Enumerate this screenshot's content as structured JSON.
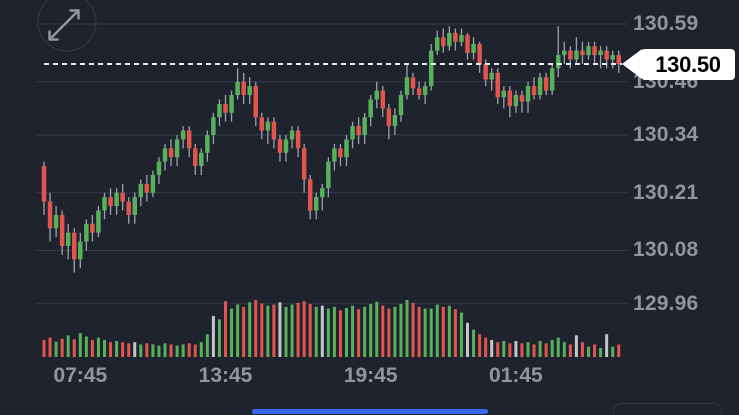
{
  "controls": {
    "expand_button_icon": "expand-arrows-icon",
    "partial_bottom_button_label": ""
  },
  "chart_data": {
    "type": "candlestick",
    "title": "",
    "interval_hint": "15m",
    "last_price": 130.5,
    "last_price_label": "130.50",
    "price_line_value": 130.5,
    "y_axis": {
      "side": "right",
      "max_visible": 130.59,
      "ticks": [
        {
          "label": "130.59",
          "value": 130.59
        },
        {
          "label": "130.46",
          "value": 130.46
        },
        {
          "label": "130.34",
          "value": 130.34
        },
        {
          "label": "130.21",
          "value": 130.21
        },
        {
          "label": "130.08",
          "value": 130.08
        },
        {
          "label": "129.96",
          "value": 129.96
        }
      ]
    },
    "x_axis": {
      "labels": [
        {
          "label": "07:45",
          "candle_index": 6
        },
        {
          "label": "13:45",
          "candle_index": 30
        },
        {
          "label": "19:45",
          "candle_index": 54
        },
        {
          "label": "01:45",
          "candle_index": 78
        }
      ]
    },
    "colors": {
      "up": "#56b15a",
      "down": "#e2554f",
      "neutral": "#c2c5cc",
      "wick": "#aab0ba",
      "grid": "#343b49",
      "axis_text": "#8f95a1",
      "dashed_line": "#e8eaef",
      "badge_bg": "#ffffff",
      "badge_text": "#000000",
      "background": "#1f232e",
      "accent_blue": "#3a68ef"
    },
    "candles": [
      [
        130.27,
        130.28,
        130.16,
        130.19
      ],
      [
        130.19,
        130.21,
        130.1,
        130.13
      ],
      [
        130.13,
        130.18,
        130.11,
        130.16
      ],
      [
        130.16,
        130.17,
        130.07,
        130.09
      ],
      [
        130.09,
        130.14,
        130.06,
        130.12
      ],
      [
        130.12,
        130.13,
        130.03,
        130.06
      ],
      [
        130.06,
        130.12,
        130.04,
        130.1
      ],
      [
        130.1,
        130.15,
        130.08,
        130.14
      ],
      [
        130.14,
        130.16,
        130.1,
        130.12
      ],
      [
        130.12,
        130.18,
        130.11,
        130.17
      ],
      [
        130.17,
        130.21,
        130.15,
        130.2
      ],
      [
        130.2,
        130.22,
        130.16,
        130.18
      ],
      [
        130.18,
        130.22,
        130.16,
        130.21
      ],
      [
        130.21,
        130.23,
        130.17,
        130.19
      ],
      [
        130.19,
        130.2,
        130.14,
        130.16
      ],
      [
        130.16,
        130.21,
        130.14,
        130.2
      ],
      [
        130.2,
        130.24,
        130.18,
        130.23
      ],
      [
        130.23,
        130.25,
        130.19,
        130.21
      ],
      [
        130.21,
        130.26,
        130.2,
        130.25
      ],
      [
        130.25,
        130.29,
        130.23,
        130.28
      ],
      [
        130.28,
        130.32,
        130.26,
        130.31
      ],
      [
        130.31,
        130.33,
        130.27,
        130.29
      ],
      [
        130.29,
        130.34,
        130.27,
        130.33
      ],
      [
        130.33,
        130.36,
        130.31,
        130.35
      ],
      [
        130.35,
        130.36,
        130.29,
        130.31
      ],
      [
        130.31,
        130.32,
        130.25,
        130.27
      ],
      [
        130.27,
        130.31,
        130.25,
        130.3
      ],
      [
        130.3,
        130.35,
        130.28,
        130.34
      ],
      [
        130.34,
        130.39,
        130.32,
        130.38
      ],
      [
        130.38,
        130.42,
        130.36,
        130.41
      ],
      [
        130.41,
        130.43,
        130.37,
        130.39
      ],
      [
        130.39,
        130.44,
        130.37,
        130.43
      ],
      [
        130.43,
        130.49,
        130.42,
        130.46
      ],
      [
        130.46,
        130.48,
        130.41,
        130.43
      ],
      [
        130.43,
        130.47,
        130.41,
        130.45
      ],
      [
        130.45,
        130.46,
        130.36,
        130.38
      ],
      [
        130.38,
        130.39,
        130.33,
        130.35
      ],
      [
        130.35,
        130.38,
        130.32,
        130.37
      ],
      [
        130.37,
        130.38,
        130.31,
        130.33
      ],
      [
        130.33,
        130.34,
        130.28,
        130.3
      ],
      [
        130.3,
        130.34,
        130.28,
        130.33
      ],
      [
        130.33,
        130.36,
        130.31,
        130.35
      ],
      [
        130.35,
        130.36,
        130.29,
        130.31
      ],
      [
        130.31,
        130.32,
        130.21,
        130.24
      ],
      [
        130.24,
        130.25,
        130.15,
        130.17
      ],
      [
        130.17,
        130.21,
        130.15,
        130.2
      ],
      [
        130.2,
        130.23,
        130.17,
        130.22
      ],
      [
        130.22,
        130.29,
        130.2,
        130.28
      ],
      [
        130.28,
        130.32,
        130.26,
        130.31
      ],
      [
        130.31,
        130.32,
        130.27,
        130.29
      ],
      [
        130.29,
        130.34,
        130.27,
        130.33
      ],
      [
        130.33,
        130.37,
        130.31,
        130.36
      ],
      [
        130.36,
        130.38,
        130.32,
        130.34
      ],
      [
        130.34,
        130.39,
        130.32,
        130.38
      ],
      [
        130.38,
        130.43,
        130.36,
        130.42
      ],
      [
        130.42,
        130.46,
        130.4,
        130.44
      ],
      [
        130.44,
        130.45,
        130.38,
        130.4
      ],
      [
        130.4,
        130.41,
        130.33,
        130.36
      ],
      [
        130.36,
        130.4,
        130.34,
        130.385
      ],
      [
        130.385,
        130.44,
        130.37,
        130.43
      ],
      [
        130.43,
        130.5,
        130.42,
        130.47
      ],
      [
        130.47,
        130.48,
        130.43,
        130.445
      ],
      [
        130.445,
        130.46,
        130.42,
        130.43
      ],
      [
        130.43,
        130.46,
        130.41,
        130.45
      ],
      [
        130.45,
        130.545,
        130.44,
        130.53
      ],
      [
        130.53,
        130.575,
        130.52,
        130.56
      ],
      [
        130.56,
        130.58,
        130.525,
        130.54
      ],
      [
        130.54,
        130.585,
        130.53,
        130.57
      ],
      [
        130.57,
        130.58,
        130.53,
        130.55
      ],
      [
        130.55,
        130.58,
        130.54,
        130.565
      ],
      [
        130.565,
        130.57,
        130.51,
        130.525
      ],
      [
        130.525,
        130.56,
        130.51,
        130.545
      ],
      [
        130.545,
        130.55,
        130.48,
        130.5
      ],
      [
        130.5,
        130.51,
        130.45,
        130.465
      ],
      [
        130.465,
        130.49,
        130.44,
        130.48
      ],
      [
        130.48,
        130.49,
        130.41,
        130.425
      ],
      [
        130.425,
        130.45,
        130.4,
        130.44
      ],
      [
        130.44,
        130.45,
        130.38,
        130.405
      ],
      [
        130.405,
        130.44,
        130.39,
        130.43
      ],
      [
        130.43,
        130.44,
        130.39,
        130.415
      ],
      [
        130.415,
        130.46,
        130.39,
        130.45
      ],
      [
        130.45,
        130.47,
        130.42,
        130.43
      ],
      [
        130.43,
        130.48,
        130.42,
        130.47
      ],
      [
        130.47,
        130.48,
        130.43,
        130.44
      ],
      [
        130.44,
        130.5,
        130.43,
        130.49
      ],
      [
        130.49,
        130.585,
        130.47,
        130.52
      ],
      [
        130.52,
        130.55,
        130.5,
        130.53
      ],
      [
        130.53,
        130.54,
        130.49,
        130.51
      ],
      [
        130.51,
        130.56,
        130.5,
        130.53
      ],
      [
        130.53,
        130.55,
        130.5,
        130.52
      ],
      [
        130.52,
        130.55,
        130.51,
        130.54
      ],
      [
        130.54,
        130.55,
        130.5,
        130.52
      ],
      [
        130.52,
        130.54,
        130.49,
        130.53
      ],
      [
        130.53,
        130.54,
        130.49,
        130.51
      ],
      [
        130.51,
        130.53,
        130.49,
        130.52
      ],
      [
        130.52,
        130.53,
        130.48,
        130.5
      ]
    ],
    "volume": [
      [
        0.3,
        "r"
      ],
      [
        0.34,
        "r"
      ],
      [
        0.27,
        "g"
      ],
      [
        0.32,
        "r"
      ],
      [
        0.38,
        "g"
      ],
      [
        0.31,
        "r"
      ],
      [
        0.42,
        "g"
      ],
      [
        0.36,
        "g"
      ],
      [
        0.3,
        "r"
      ],
      [
        0.34,
        "g"
      ],
      [
        0.3,
        "g"
      ],
      [
        0.26,
        "r"
      ],
      [
        0.28,
        "g"
      ],
      [
        0.26,
        "r"
      ],
      [
        0.24,
        "r"
      ],
      [
        0.26,
        "n"
      ],
      [
        0.22,
        "g"
      ],
      [
        0.24,
        "r"
      ],
      [
        0.22,
        "g"
      ],
      [
        0.2,
        "g"
      ],
      [
        0.24,
        "g"
      ],
      [
        0.22,
        "r"
      ],
      [
        0.2,
        "g"
      ],
      [
        0.22,
        "g"
      ],
      [
        0.24,
        "r"
      ],
      [
        0.22,
        "r"
      ],
      [
        0.26,
        "g"
      ],
      [
        0.4,
        "g"
      ],
      [
        0.72,
        "n"
      ],
      [
        0.66,
        "g"
      ],
      [
        0.98,
        "r"
      ],
      [
        0.85,
        "g"
      ],
      [
        0.92,
        "g"
      ],
      [
        0.88,
        "r"
      ],
      [
        0.96,
        "g"
      ],
      [
        1.0,
        "r"
      ],
      [
        0.94,
        "r"
      ],
      [
        0.9,
        "g"
      ],
      [
        0.92,
        "r"
      ],
      [
        0.96,
        "n"
      ],
      [
        0.88,
        "g"
      ],
      [
        0.92,
        "g"
      ],
      [
        0.95,
        "r"
      ],
      [
        0.98,
        "r"
      ],
      [
        0.93,
        "r"
      ],
      [
        0.88,
        "g"
      ],
      [
        0.9,
        "n"
      ],
      [
        0.85,
        "g"
      ],
      [
        0.88,
        "g"
      ],
      [
        0.82,
        "r"
      ],
      [
        0.86,
        "g"
      ],
      [
        0.9,
        "g"
      ],
      [
        0.84,
        "r"
      ],
      [
        0.88,
        "g"
      ],
      [
        0.93,
        "g"
      ],
      [
        0.97,
        "g"
      ],
      [
        0.9,
        "r"
      ],
      [
        0.85,
        "r"
      ],
      [
        0.88,
        "g"
      ],
      [
        0.93,
        "g"
      ],
      [
        1.0,
        "g"
      ],
      [
        0.95,
        "r"
      ],
      [
        0.88,
        "r"
      ],
      [
        0.85,
        "g"
      ],
      [
        0.85,
        "g"
      ],
      [
        0.92,
        "g"
      ],
      [
        0.88,
        "r"
      ],
      [
        0.9,
        "g"
      ],
      [
        0.84,
        "r"
      ],
      [
        0.78,
        "g"
      ],
      [
        0.6,
        "n"
      ],
      [
        0.48,
        "g"
      ],
      [
        0.4,
        "r"
      ],
      [
        0.34,
        "r"
      ],
      [
        0.3,
        "n"
      ],
      [
        0.26,
        "r"
      ],
      [
        0.28,
        "g"
      ],
      [
        0.24,
        "r"
      ],
      [
        0.28,
        "n"
      ],
      [
        0.24,
        "r"
      ],
      [
        0.26,
        "g"
      ],
      [
        0.22,
        "r"
      ],
      [
        0.28,
        "g"
      ],
      [
        0.24,
        "r"
      ],
      [
        0.3,
        "g"
      ],
      [
        0.34,
        "g"
      ],
      [
        0.26,
        "g"
      ],
      [
        0.22,
        "r"
      ],
      [
        0.38,
        "n"
      ],
      [
        0.26,
        "r"
      ],
      [
        0.18,
        "g"
      ],
      [
        0.22,
        "r"
      ],
      [
        0.16,
        "g"
      ],
      [
        0.4,
        "n"
      ],
      [
        0.18,
        "g"
      ],
      [
        0.22,
        "r"
      ]
    ]
  }
}
